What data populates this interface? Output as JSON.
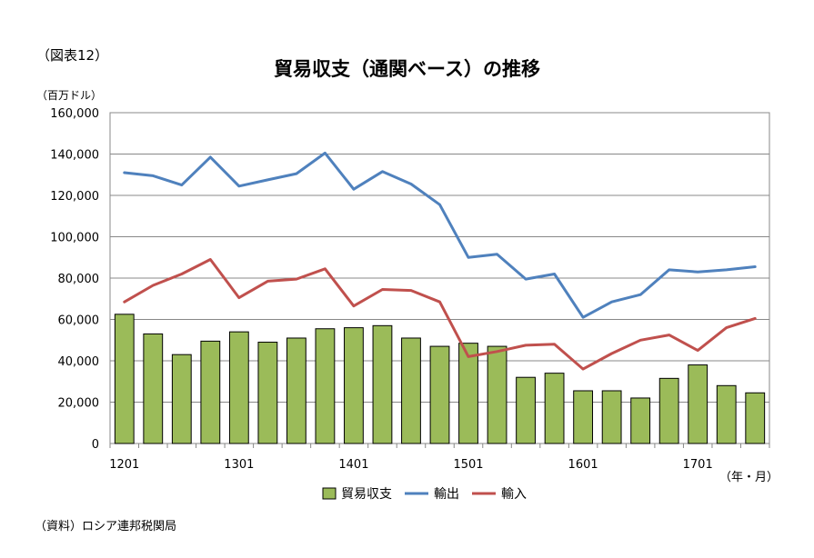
{
  "figure_label": "（図表12）",
  "unit_label": "（百万ドル）",
  "source": "（資料）ロシア連邦税関局",
  "chart_data": {
    "type": "bar+line",
    "title": "貿易収支（通関ベース）の推移",
    "xlabel": "（年・月）",
    "ylabel": "",
    "ylim": [
      0,
      160000
    ],
    "yticks": [
      0,
      20000,
      40000,
      60000,
      80000,
      100000,
      120000,
      140000,
      160000
    ],
    "ytick_labels": [
      "0",
      "20,000",
      "40,000",
      "60,000",
      "80,000",
      "100,000",
      "120,000",
      "140,000",
      "160,000"
    ],
    "x_tick_labels": [
      {
        "index": 0,
        "label": "1201"
      },
      {
        "index": 4,
        "label": "1301"
      },
      {
        "index": 8,
        "label": "1401"
      },
      {
        "index": 12,
        "label": "1501"
      },
      {
        "index": 16,
        "label": "1601"
      },
      {
        "index": 20,
        "label": "1701"
      }
    ],
    "grid": true,
    "legend_position": "bottom",
    "series": [
      {
        "name": "貿易収支",
        "kind": "bar",
        "color": "#9bbb59",
        "values": [
          62500,
          53000,
          43000,
          49500,
          54000,
          49000,
          51000,
          55500,
          56000,
          57000,
          51000,
          47000,
          48500,
          47000,
          32000,
          34000,
          25500,
          25500,
          22000,
          31500,
          38000,
          28000,
          24500
        ]
      },
      {
        "name": "輸出",
        "kind": "line",
        "color": "#4f81bd",
        "values": [
          131000,
          129500,
          125000,
          138500,
          124500,
          127500,
          130500,
          140500,
          123000,
          131500,
          125500,
          115500,
          90000,
          91500,
          79500,
          82000,
          61000,
          68500,
          72000,
          84000,
          83000,
          84000,
          85500
        ]
      },
      {
        "name": "輸入",
        "kind": "line",
        "color": "#c0504d",
        "values": [
          68500,
          76500,
          82000,
          89000,
          70500,
          78500,
          79500,
          84500,
          66500,
          74500,
          74000,
          68500,
          42000,
          44500,
          47500,
          48000,
          36000,
          43500,
          50000,
          52500,
          45000,
          56000,
          60500
        ]
      }
    ]
  }
}
